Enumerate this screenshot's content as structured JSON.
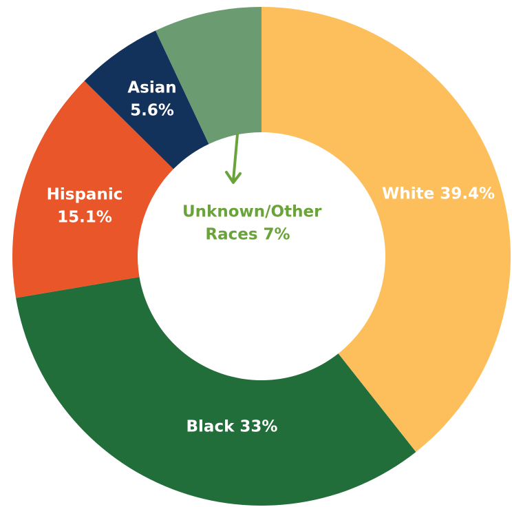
{
  "chart_data": {
    "type": "donut",
    "categories": [
      "White",
      "Black",
      "Hispanic",
      "Asian",
      "Unknown/Other Races"
    ],
    "values": [
      39.4,
      33,
      15.1,
      5.6,
      7
    ],
    "value_labels": [
      "39.4%",
      "33%",
      "15.1%",
      "5.6%",
      "7%"
    ],
    "colors": [
      "#fdbf5b",
      "#216e3a",
      "#e8562a",
      "#13325b",
      "#6b9b70"
    ]
  }
}
